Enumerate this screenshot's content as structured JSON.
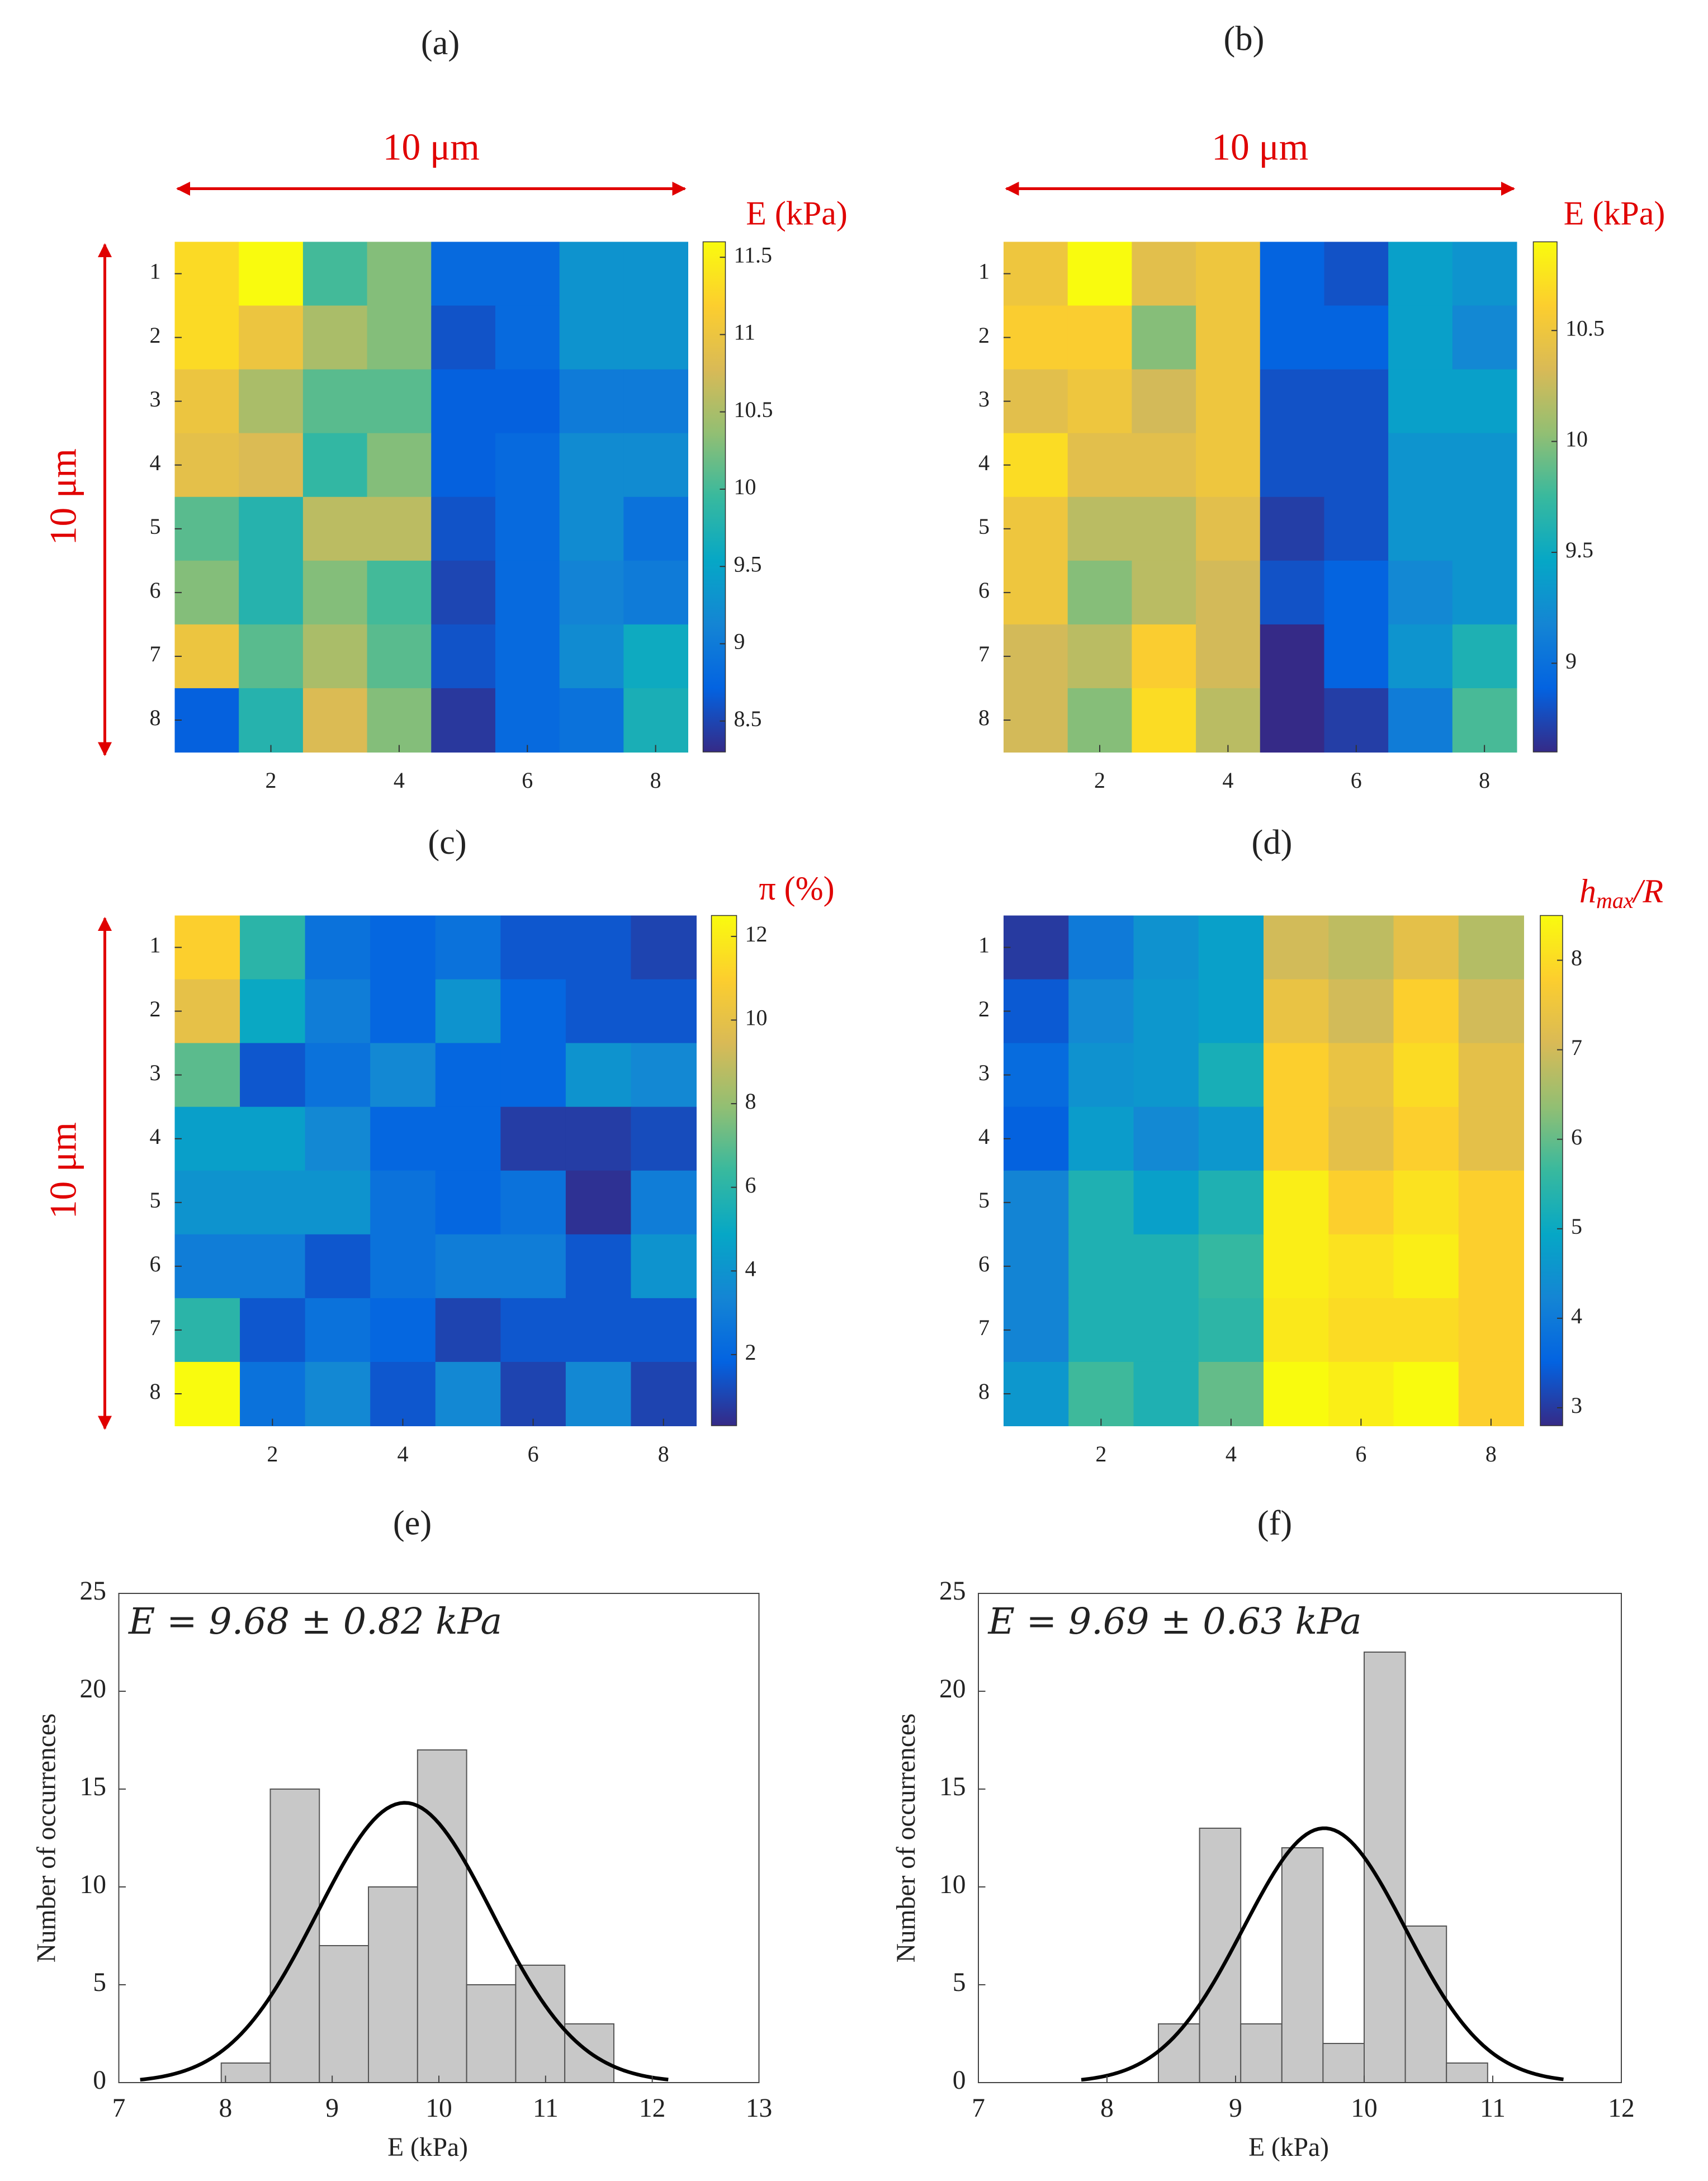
{
  "chart_data": [
    {
      "type": "heatmap",
      "title": "(a)",
      "colorbar_label": "E (kPa)",
      "scale_x_label": "10 μm",
      "scale_y_label": "10 μm",
      "annotation_color": "#e00000",
      "colormap": "parula",
      "xlim": [
        0.5,
        8.5
      ],
      "xticks": [
        2,
        4,
        6,
        8
      ],
      "ylim": [
        0.5,
        8.5
      ],
      "yticks": [
        1,
        2,
        3,
        4,
        5,
        6,
        7,
        8
      ],
      "clim": [
        8.3,
        11.6
      ],
      "cticks": [
        8.5,
        9,
        9.5,
        10,
        10.5,
        11,
        11.5
      ],
      "values": [
        [
          11.3,
          11.6,
          10.0,
          10.3,
          8.8,
          8.8,
          9.3,
          9.3
        ],
        [
          11.3,
          11.0,
          10.5,
          10.3,
          8.6,
          8.8,
          9.3,
          9.3
        ],
        [
          11.0,
          10.5,
          10.1,
          10.1,
          8.7,
          8.7,
          9.0,
          9.0
        ],
        [
          10.9,
          10.8,
          9.9,
          10.3,
          8.7,
          8.8,
          9.2,
          9.2
        ],
        [
          10.1,
          9.8,
          10.6,
          10.6,
          8.6,
          8.8,
          9.2,
          8.9
        ],
        [
          10.3,
          9.8,
          10.3,
          10.0,
          8.5,
          8.8,
          9.1,
          9.0
        ],
        [
          11.0,
          10.1,
          10.5,
          10.1,
          8.6,
          8.8,
          9.2,
          9.6
        ],
        [
          8.7,
          9.8,
          10.8,
          10.3,
          8.4,
          8.8,
          8.9,
          9.7
        ]
      ]
    },
    {
      "type": "heatmap",
      "title": "(b)",
      "colorbar_label": "E (kPa)",
      "scale_x_label": "10 μm",
      "annotation_color": "#e00000",
      "colormap": "parula",
      "xlim": [
        0.5,
        8.5
      ],
      "xticks": [
        2,
        4,
        6,
        8
      ],
      "ylim": [
        0.5,
        8.5
      ],
      "yticks": [
        1,
        2,
        3,
        4,
        5,
        6,
        7,
        8
      ],
      "clim": [
        8.6,
        10.9
      ],
      "cticks": [
        9,
        9.5,
        10,
        10.5
      ],
      "values": [
        [
          10.5,
          10.9,
          10.4,
          10.5,
          8.9,
          8.8,
          9.4,
          9.3
        ],
        [
          10.6,
          10.6,
          10.0,
          10.5,
          8.9,
          8.9,
          9.4,
          9.2
        ],
        [
          10.4,
          10.5,
          10.3,
          10.5,
          8.8,
          8.8,
          9.4,
          9.4
        ],
        [
          10.7,
          10.4,
          10.4,
          10.5,
          8.8,
          8.8,
          9.3,
          9.3
        ],
        [
          10.5,
          10.2,
          10.2,
          10.4,
          8.7,
          8.8,
          9.3,
          9.3
        ],
        [
          10.5,
          10.0,
          10.2,
          10.3,
          8.8,
          8.9,
          9.2,
          9.3
        ],
        [
          10.3,
          10.2,
          10.6,
          10.3,
          8.6,
          8.9,
          9.3,
          9.6
        ],
        [
          10.3,
          10.0,
          10.7,
          10.2,
          8.6,
          8.7,
          9.1,
          9.8
        ]
      ]
    },
    {
      "type": "heatmap",
      "title": "(c)",
      "colorbar_label": "π (%)",
      "scale_y_label": "10 μm",
      "annotation_color": "#e00000",
      "colormap": "parula",
      "xlim": [
        0.5,
        8.5
      ],
      "xticks": [
        2,
        4,
        6,
        8
      ],
      "ylim": [
        0.5,
        8.5
      ],
      "yticks": [
        1,
        2,
        3,
        4,
        5,
        6,
        7,
        8
      ],
      "clim": [
        0.3,
        12.5
      ],
      "cticks": [
        2,
        4,
        6,
        8,
        10,
        12
      ],
      "values": [
        [
          11,
          6,
          2.5,
          2,
          2.5,
          1.5,
          1.5,
          1
        ],
        [
          10,
          5,
          3,
          2,
          4,
          2,
          1.5,
          1.5
        ],
        [
          7,
          1.5,
          2.5,
          3.5,
          2,
          2,
          4,
          3.5
        ],
        [
          4.5,
          4.5,
          3.5,
          2,
          2,
          0.8,
          0.8,
          1.2
        ],
        [
          4,
          4,
          4,
          2.5,
          2,
          2.5,
          0.5,
          3
        ],
        [
          3,
          3,
          1.5,
          2.5,
          3,
          3,
          1.5,
          4
        ],
        [
          6,
          1.5,
          2.5,
          2,
          1,
          1.5,
          1.5,
          1.5
        ],
        [
          12.5,
          2.5,
          3.5,
          1.5,
          3.5,
          1,
          3.5,
          1
        ]
      ]
    },
    {
      "type": "heatmap",
      "title": "(d)",
      "colorbar_label": {
        "base": "h",
        "sub": "max",
        "after": "/R"
      },
      "annotation_color": "#e00000",
      "colormap": "parula",
      "xlim": [
        0.5,
        8.5
      ],
      "xticks": [
        2,
        4,
        6,
        8
      ],
      "ylim": [
        0.5,
        8.5
      ],
      "yticks": [
        1,
        2,
        3,
        4,
        5,
        6,
        7,
        8
      ],
      "clim": [
        2.8,
        8.5
      ],
      "cticks": [
        3,
        4,
        5,
        6,
        7,
        8
      ],
      "values": [
        [
          3.0,
          4.0,
          4.5,
          4.8,
          7.0,
          6.8,
          7.3,
          6.7
        ],
        [
          3.4,
          4.3,
          4.6,
          4.8,
          7.4,
          7.0,
          7.8,
          7.0
        ],
        [
          3.7,
          4.5,
          4.6,
          5.2,
          7.8,
          7.4,
          8.0,
          7.3
        ],
        [
          3.5,
          4.7,
          4.3,
          4.6,
          7.8,
          7.3,
          7.8,
          7.3
        ],
        [
          4.2,
          5.3,
          4.8,
          5.3,
          8.3,
          7.8,
          8.1,
          7.8
        ],
        [
          4.2,
          5.3,
          5.3,
          5.6,
          8.3,
          8.1,
          8.3,
          7.8
        ],
        [
          4.2,
          5.3,
          5.3,
          5.5,
          8.2,
          8.0,
          8.0,
          7.8
        ],
        [
          4.6,
          5.7,
          5.3,
          6.0,
          8.5,
          8.3,
          8.5,
          7.8
        ]
      ]
    },
    {
      "type": "histogram",
      "title": "(e)",
      "xlabel": "E (kPa)",
      "ylabel": "Number of occurrences",
      "annotation": "E = 9.68 ± 0.82 kPa",
      "color": "#c8c8c8",
      "bins": [
        7.96,
        8.42,
        8.88,
        9.34,
        9.8,
        10.26,
        10.72,
        11.18,
        11.64
      ],
      "counts": [
        1,
        15,
        7,
        10,
        17,
        5,
        6,
        3
      ],
      "xlim": [
        7,
        13
      ],
      "xticks": [
        7,
        8,
        9,
        10,
        11,
        12,
        13
      ],
      "ylim": [
        0,
        25
      ],
      "yticks": [
        0,
        5,
        10,
        15,
        20,
        25
      ],
      "fit": {
        "mean": 9.68,
        "sd": 0.82,
        "peak": 14.3,
        "range": [
          7.2,
          12.15
        ],
        "color": "#000000"
      }
    },
    {
      "type": "histogram",
      "title": "(f)",
      "xlabel": "E (kPa)",
      "ylabel": "Number of occurrences",
      "annotation": "E = 9.69 ± 0.63 kPa",
      "color": "#c8c8c8",
      "bins": [
        8.4,
        8.72,
        9.04,
        9.36,
        9.68,
        10.0,
        10.32,
        10.64,
        10.96
      ],
      "counts": [
        3,
        13,
        3,
        12,
        2,
        22,
        8,
        1
      ],
      "xlim": [
        7,
        12
      ],
      "xticks": [
        7,
        8,
        9,
        10,
        11,
        12
      ],
      "ylim": [
        0,
        25
      ],
      "yticks": [
        0,
        5,
        10,
        15,
        20,
        25
      ],
      "fit": {
        "mean": 9.69,
        "sd": 0.63,
        "peak": 13.0,
        "range": [
          7.8,
          11.55
        ],
        "color": "#000000"
      }
    }
  ]
}
